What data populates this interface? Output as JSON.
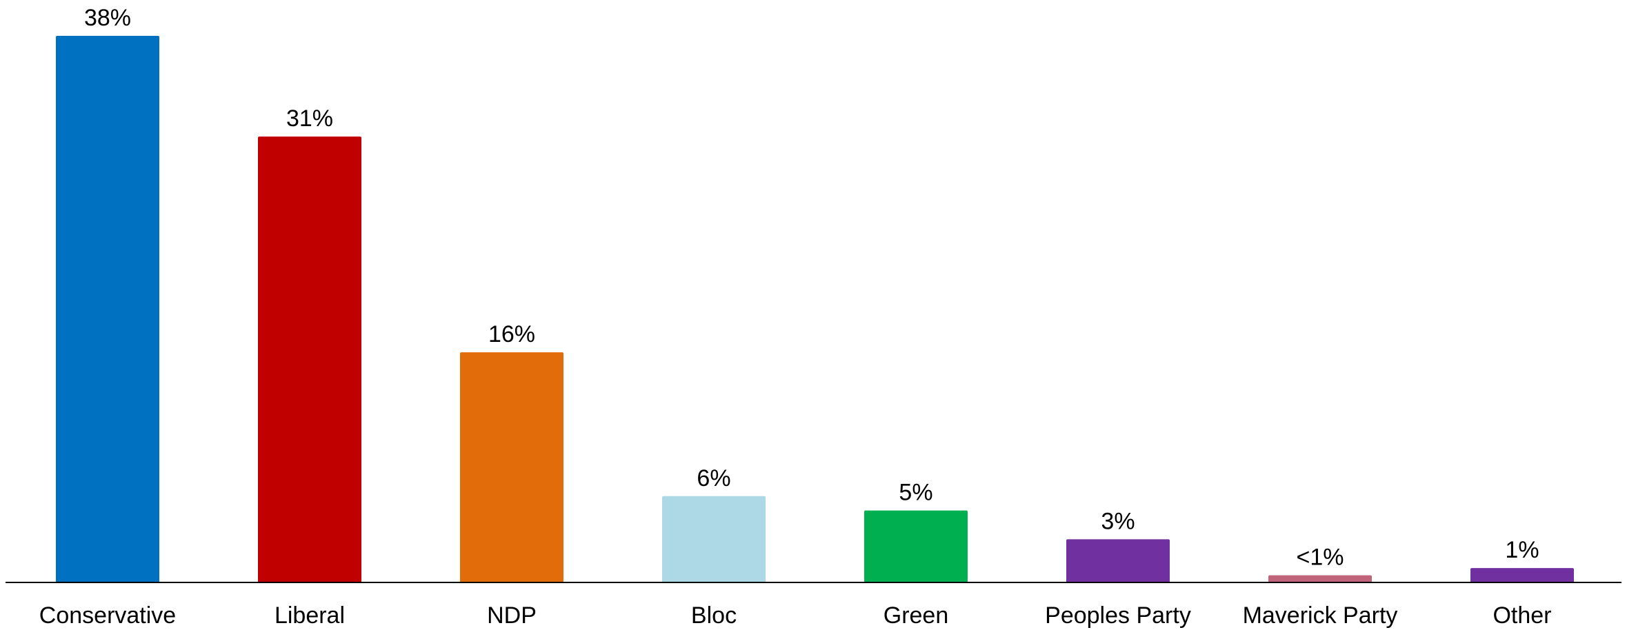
{
  "chart_data": {
    "type": "bar",
    "title": "",
    "xlabel": "",
    "ylabel": "",
    "ylim": [
      0,
      38
    ],
    "grid": false,
    "legend": "none",
    "categories": [
      "Conservative",
      "Liberal",
      "NDP",
      "Bloc",
      "Green",
      "Peoples Party",
      "Maverick Party",
      "Other"
    ],
    "values": [
      38,
      31,
      16,
      6,
      5,
      3,
      0.5,
      1
    ],
    "labels": [
      "38%",
      "31%",
      "16%",
      "6%",
      "5%",
      "3%",
      "<1%",
      "1%"
    ],
    "colors": [
      "#0070C0",
      "#C00000",
      "#E36C0A",
      "#ADD8E6",
      "#00B050",
      "#7030A0",
      "#C0637B",
      "#7030A0"
    ]
  }
}
